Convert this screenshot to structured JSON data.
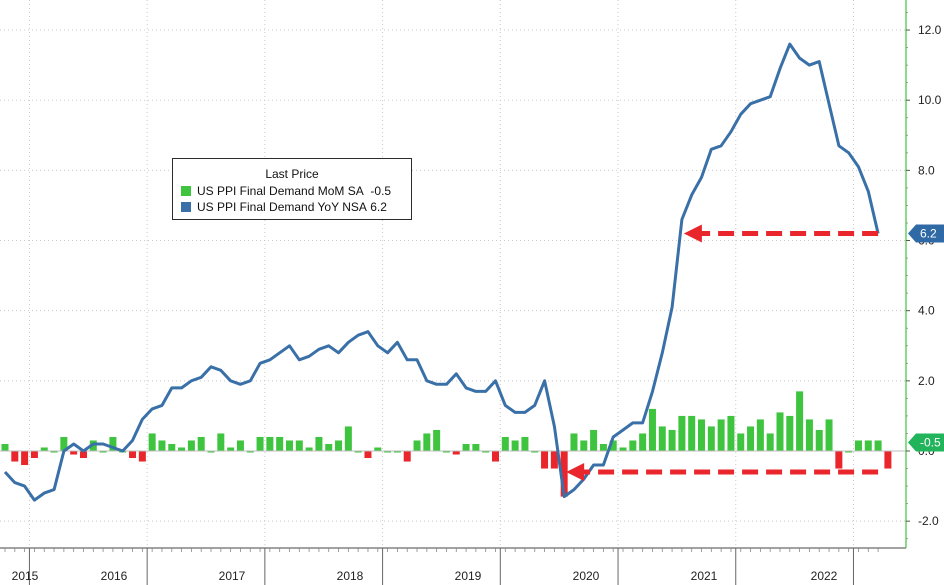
{
  "chart_data": {
    "type": "bar+line",
    "title": "",
    "legend": {
      "title": "Last Price",
      "placement": "upper-left",
      "entries": [
        {
          "label": "US PPI Final Demand MoM SA",
          "value": "-0.5",
          "color": "#3ec43e"
        },
        {
          "label": "US PPI Final Demand YoY NSA",
          "value": "6.2",
          "color": "#3a70a8"
        }
      ]
    },
    "y_axis": {
      "ticks": [
        "12.0",
        "10.0",
        "8.0",
        "6.0",
        "4.0",
        "2.0",
        "0.0",
        "-2.0"
      ],
      "range": [
        -2.8,
        12.8
      ],
      "side": "right"
    },
    "x_axis": {
      "years": [
        "2015",
        "2016",
        "2017",
        "2018",
        "2019",
        "2020",
        "2021",
        "2022"
      ],
      "start": "2014-10",
      "end": "2022-11"
    },
    "last_value_tags": {
      "yoy": "6.2",
      "mom": "-0.5"
    },
    "series": [
      {
        "name": "US PPI Final Demand MoM SA",
        "kind": "bar",
        "color_positive": "#3ec43e",
        "color_negative": "#e8262b",
        "values": [
          0.2,
          -0.3,
          -0.4,
          -0.2,
          0.1,
          0.0,
          0.4,
          -0.1,
          -0.2,
          0.3,
          0.0,
          0.4,
          0.0,
          -0.2,
          -0.3,
          0.5,
          0.3,
          0.2,
          0.1,
          0.3,
          0.4,
          0.0,
          0.5,
          0.1,
          0.3,
          0.0,
          0.4,
          0.4,
          0.4,
          0.3,
          0.3,
          0.1,
          0.4,
          0.2,
          0.3,
          0.7,
          0.0,
          -0.2,
          0.1,
          0.0,
          0.0,
          -0.3,
          0.3,
          0.5,
          0.6,
          0.0,
          -0.1,
          0.2,
          0.2,
          0.0,
          -0.3,
          0.4,
          0.3,
          0.4,
          0.0,
          -0.5,
          -0.5,
          -1.3,
          0.5,
          0.3,
          0.6,
          0.2,
          0.3,
          0.1,
          0.3,
          0.5,
          1.2,
          0.7,
          0.6,
          1.0,
          1.0,
          0.9,
          0.7,
          0.9,
          1.0,
          0.5,
          0.7,
          0.9,
          0.5,
          1.1,
          1.0,
          1.7,
          0.9,
          0.6,
          0.9,
          -0.5,
          0.0,
          0.3,
          0.3,
          0.3,
          -0.5
        ]
      },
      {
        "name": "US PPI Final Demand YoY NSA",
        "kind": "line",
        "color": "#3a70a8",
        "values": [
          -0.6,
          -0.9,
          -1.0,
          -1.4,
          -1.2,
          -1.1,
          0.0,
          0.2,
          0.0,
          0.2,
          0.2,
          0.1,
          0.0,
          0.3,
          0.9,
          1.2,
          1.3,
          1.8,
          1.8,
          2.0,
          2.1,
          2.4,
          2.3,
          2.0,
          1.9,
          2.0,
          2.5,
          2.6,
          2.8,
          3.0,
          2.6,
          2.7,
          2.9,
          3.0,
          2.8,
          3.1,
          3.3,
          3.4,
          3.0,
          2.8,
          3.1,
          2.6,
          2.6,
          2.0,
          1.9,
          1.9,
          2.2,
          1.8,
          1.7,
          1.7,
          2.0,
          1.3,
          1.1,
          1.1,
          1.3,
          2.0,
          0.7,
          -1.3,
          -1.1,
          -0.8,
          -0.4,
          -0.4,
          0.4,
          0.6,
          0.8,
          0.8,
          1.7,
          2.8,
          4.1,
          6.6,
          7.3,
          7.8,
          8.6,
          8.7,
          9.1,
          9.6,
          9.9,
          10.0,
          10.1,
          10.9,
          11.6,
          11.2,
          11.0,
          11.1,
          9.9,
          8.7,
          8.5,
          8.1,
          7.4,
          6.2
        ]
      }
    ]
  }
}
